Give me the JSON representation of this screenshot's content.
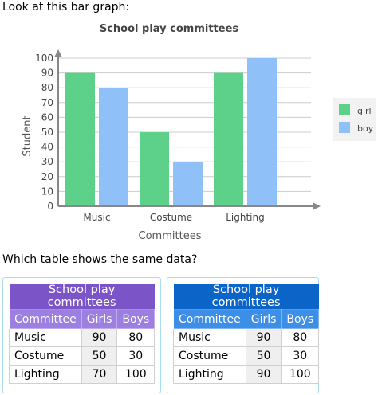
{
  "prompt": "Look at this bar graph:",
  "question": "Which table shows the same data?",
  "colors": {
    "girl": "#5dd08a",
    "boy": "#8fc1f8",
    "axis": "#888888",
    "grid": "#cccccc"
  },
  "chart_data": {
    "type": "bar",
    "title": "School play committees",
    "xlabel": "Committees",
    "ylabel": "Student",
    "categories": [
      "Music",
      "Costume",
      "Lighting"
    ],
    "series": [
      {
        "name": "girl",
        "values": [
          90,
          50,
          90
        ]
      },
      {
        "name": "boy",
        "values": [
          80,
          30,
          100
        ]
      }
    ],
    "ylim": [
      0,
      100
    ],
    "yticks": [
      "0",
      "10",
      "20",
      "30",
      "40",
      "50",
      "60",
      "70",
      "80",
      "90",
      "100"
    ],
    "grid": true,
    "legend_position": "right"
  },
  "choices": [
    {
      "title": "School play committees",
      "headers": [
        "Committee",
        "Girls",
        "Boys"
      ],
      "rows": [
        [
          "Music",
          "90",
          "80"
        ],
        [
          "Costume",
          "50",
          "30"
        ],
        [
          "Lighting",
          "70",
          "100"
        ]
      ]
    },
    {
      "title": "School play committees",
      "headers": [
        "Committee",
        "Girls",
        "Boys"
      ],
      "rows": [
        [
          "Music",
          "90",
          "80"
        ],
        [
          "Costume",
          "50",
          "30"
        ],
        [
          "Lighting",
          "90",
          "100"
        ]
      ]
    }
  ]
}
